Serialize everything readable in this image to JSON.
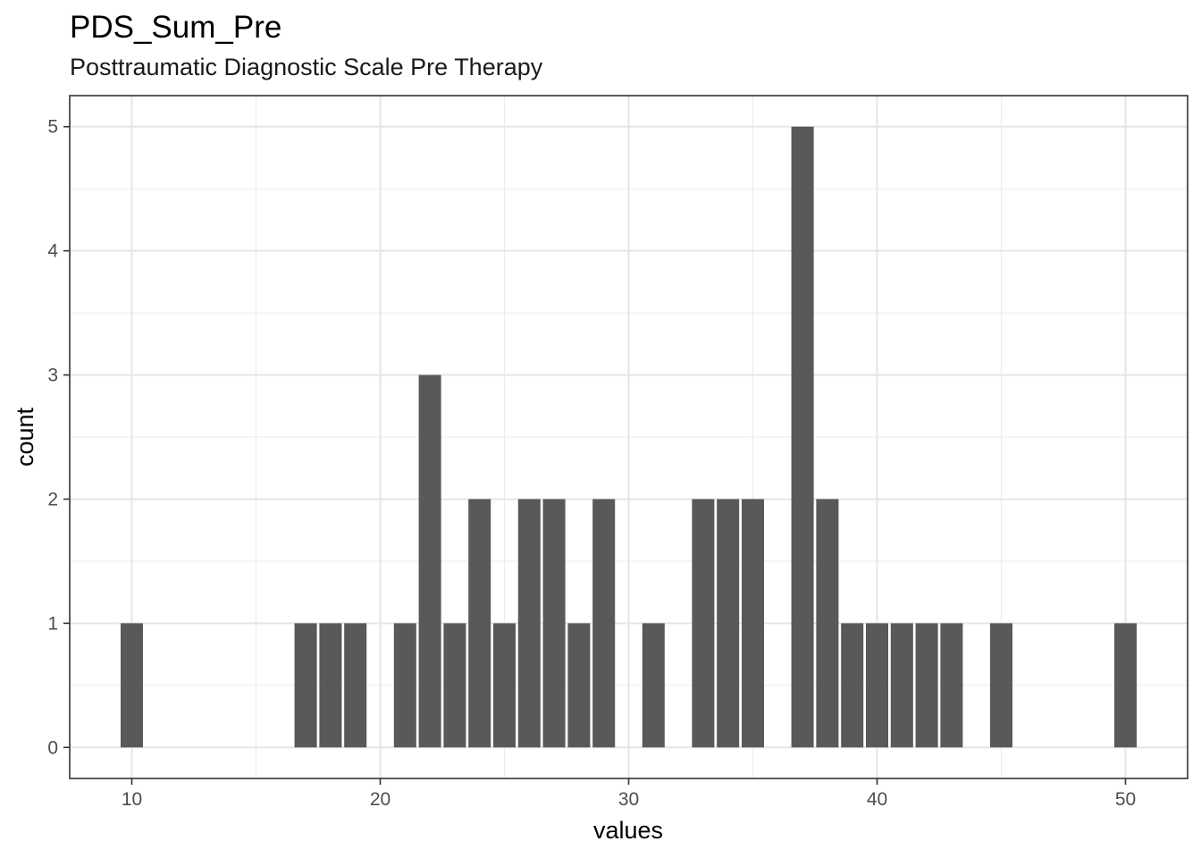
{
  "chart_data": {
    "type": "bar",
    "title": "PDS_Sum_Pre",
    "subtitle": "Posttraumatic Diagnostic Scale Pre Therapy",
    "xlabel": "values",
    "ylabel": "count",
    "xlim": [
      7.5,
      52.5
    ],
    "ylim": [
      -0.25,
      5.25
    ],
    "x_ticks": [
      10,
      20,
      30,
      40,
      50
    ],
    "y_ticks": [
      0,
      1,
      2,
      3,
      4,
      5
    ],
    "grid": true,
    "bar_color": "#595959",
    "bars": [
      {
        "x": 10,
        "count": 1
      },
      {
        "x": 17,
        "count": 1
      },
      {
        "x": 18,
        "count": 1
      },
      {
        "x": 19,
        "count": 1
      },
      {
        "x": 21,
        "count": 1
      },
      {
        "x": 22,
        "count": 3
      },
      {
        "x": 23,
        "count": 1
      },
      {
        "x": 24,
        "count": 2
      },
      {
        "x": 25,
        "count": 1
      },
      {
        "x": 26,
        "count": 2
      },
      {
        "x": 27,
        "count": 2
      },
      {
        "x": 28,
        "count": 1
      },
      {
        "x": 29,
        "count": 2
      },
      {
        "x": 31,
        "count": 1
      },
      {
        "x": 33,
        "count": 2
      },
      {
        "x": 34,
        "count": 2
      },
      {
        "x": 35,
        "count": 2
      },
      {
        "x": 37,
        "count": 5
      },
      {
        "x": 38,
        "count": 2
      },
      {
        "x": 39,
        "count": 1
      },
      {
        "x": 40,
        "count": 1
      },
      {
        "x": 41,
        "count": 1
      },
      {
        "x": 42,
        "count": 1
      },
      {
        "x": 43,
        "count": 1
      },
      {
        "x": 45,
        "count": 1
      },
      {
        "x": 50,
        "count": 1
      }
    ]
  }
}
